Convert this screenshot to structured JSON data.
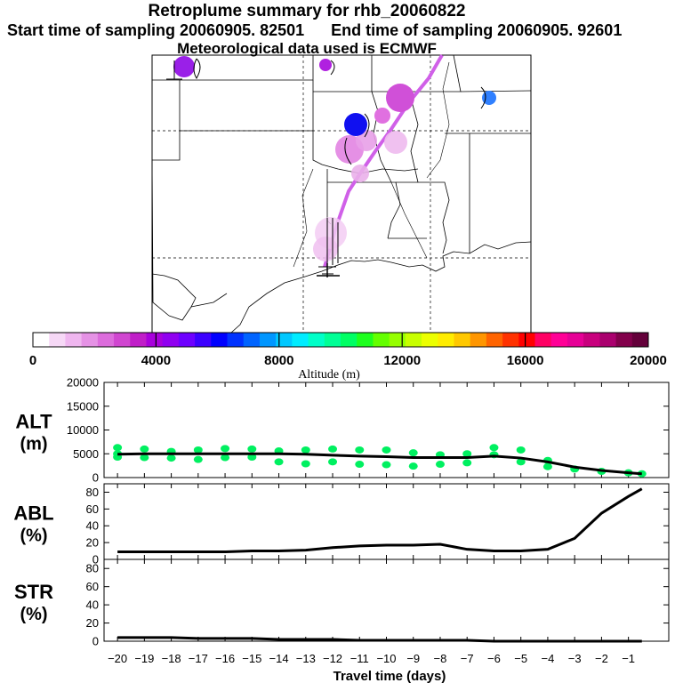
{
  "header": {
    "title": "Retroplume summary for rhb_20060822",
    "start_label": "Start time of sampling 20060905. 82501",
    "end_label": "End time of sampling 20060905. 92601",
    "met_label": "Meteorological data used is ECMWF"
  },
  "colorbar": {
    "label": "Altitude (m)",
    "ticks": [
      "0",
      "4000",
      "8000",
      "12000",
      "16000",
      "20000"
    ],
    "min": 0,
    "max": 20000,
    "colors": [
      "#ffffff",
      "#f6d8f6",
      "#efb6ef",
      "#e592e5",
      "#dc6cdc",
      "#d046d0",
      "#c01ec8",
      "#a800dc",
      "#9000f0",
      "#6e00ff",
      "#3c00ff",
      "#0000ff",
      "#0032ff",
      "#0064ff",
      "#0096ff",
      "#00c8ff",
      "#00ecff",
      "#00ffc8",
      "#00ff96",
      "#00ff64",
      "#1eff1e",
      "#64ff00",
      "#96ff00",
      "#c8ff00",
      "#ecff00",
      "#ffec00",
      "#ffc800",
      "#ff9600",
      "#ff6400",
      "#ff3200",
      "#ff0000",
      "#ff0064",
      "#ff0096",
      "#e60096",
      "#c8007d",
      "#aa006e",
      "#82004b",
      "#64003a"
    ]
  },
  "map": {
    "plume_color": "#d060e8",
    "receptor_color": "#d000d0"
  },
  "chart_data": {
    "type": "line",
    "xlabel": "Travel time (days)",
    "xlim": [
      -20.5,
      0.5
    ],
    "x_ticks": [
      -20,
      -19,
      -18,
      -17,
      -16,
      -15,
      -14,
      -13,
      -12,
      -11,
      -10,
      -9,
      -8,
      -7,
      -6,
      -5,
      -4,
      -3,
      -2,
      -1
    ],
    "panels": [
      {
        "name": "ALT",
        "ylabel_top": "ALT",
        "ylabel_bottom": "(m)",
        "ylim": [
          0,
          20000
        ],
        "y_ticks": [
          0,
          5000,
          10000,
          15000,
          20000
        ],
        "x": [
          -20,
          -19,
          -18,
          -17,
          -16,
          -15,
          -14,
          -13,
          -12,
          -11,
          -10,
          -9,
          -8,
          -7,
          -6,
          -5,
          -4,
          -3,
          -2,
          -1,
          -0.5
        ],
        "values": [
          4900,
          5000,
          5000,
          5000,
          5000,
          5000,
          5000,
          4900,
          4700,
          4500,
          4400,
          4200,
          4200,
          4200,
          4500,
          4100,
          3300,
          2200,
          1500,
          1000,
          800
        ],
        "scatter_color": "#00f060",
        "scatter_x": [
          -20,
          -20,
          -20,
          -19,
          -19,
          -18,
          -18,
          -17,
          -17,
          -16,
          -16,
          -15,
          -15,
          -14,
          -14,
          -13,
          -13,
          -12,
          -12,
          -11,
          -11,
          -10,
          -10,
          -9,
          -9,
          -8,
          -8,
          -7,
          -7,
          -6,
          -6,
          -5,
          -5,
          -4,
          -4,
          -3,
          -2,
          -1,
          -0.5
        ],
        "scatter_y": [
          6300,
          5000,
          4300,
          6000,
          4200,
          5500,
          4100,
          5800,
          3800,
          6100,
          4200,
          6000,
          4300,
          5600,
          3300,
          5800,
          2900,
          6000,
          3300,
          5800,
          2800,
          5800,
          2700,
          5200,
          2400,
          4800,
          2800,
          5000,
          3100,
          6300,
          4800,
          5800,
          3300,
          3600,
          2300,
          1800,
          1300,
          1000,
          800
        ]
      },
      {
        "name": "ABL",
        "ylabel_top": "ABL",
        "ylabel_bottom": "(%)",
        "ylim": [
          0,
          90
        ],
        "y_ticks": [
          0,
          20,
          40,
          60,
          80
        ],
        "x": [
          -20,
          -19,
          -18,
          -17,
          -16,
          -15,
          -14,
          -13,
          -12,
          -11,
          -10,
          -9,
          -8,
          -7,
          -6,
          -5,
          -4,
          -3,
          -2,
          -1,
          -0.5
        ],
        "values": [
          9,
          9,
          9,
          9,
          9,
          10,
          10,
          11,
          14,
          16,
          17,
          17,
          18,
          12,
          10,
          10,
          12,
          25,
          55,
          75,
          84
        ]
      },
      {
        "name": "STR",
        "ylabel_top": "STR",
        "ylabel_bottom": "(%)",
        "ylim": [
          0,
          90
        ],
        "y_ticks": [
          0,
          20,
          40,
          60,
          80
        ],
        "x": [
          -20,
          -19,
          -18,
          -17,
          -16,
          -15,
          -14,
          -13,
          -12,
          -11,
          -10,
          -9,
          -8,
          -7,
          -6,
          -5,
          -4,
          -3,
          -2,
          -1,
          -0.5
        ],
        "values": [
          4,
          4,
          4,
          3,
          3,
          3,
          2,
          2,
          2,
          1,
          1,
          1,
          1,
          1,
          0,
          0,
          0,
          0,
          0,
          0,
          0
        ]
      }
    ]
  }
}
